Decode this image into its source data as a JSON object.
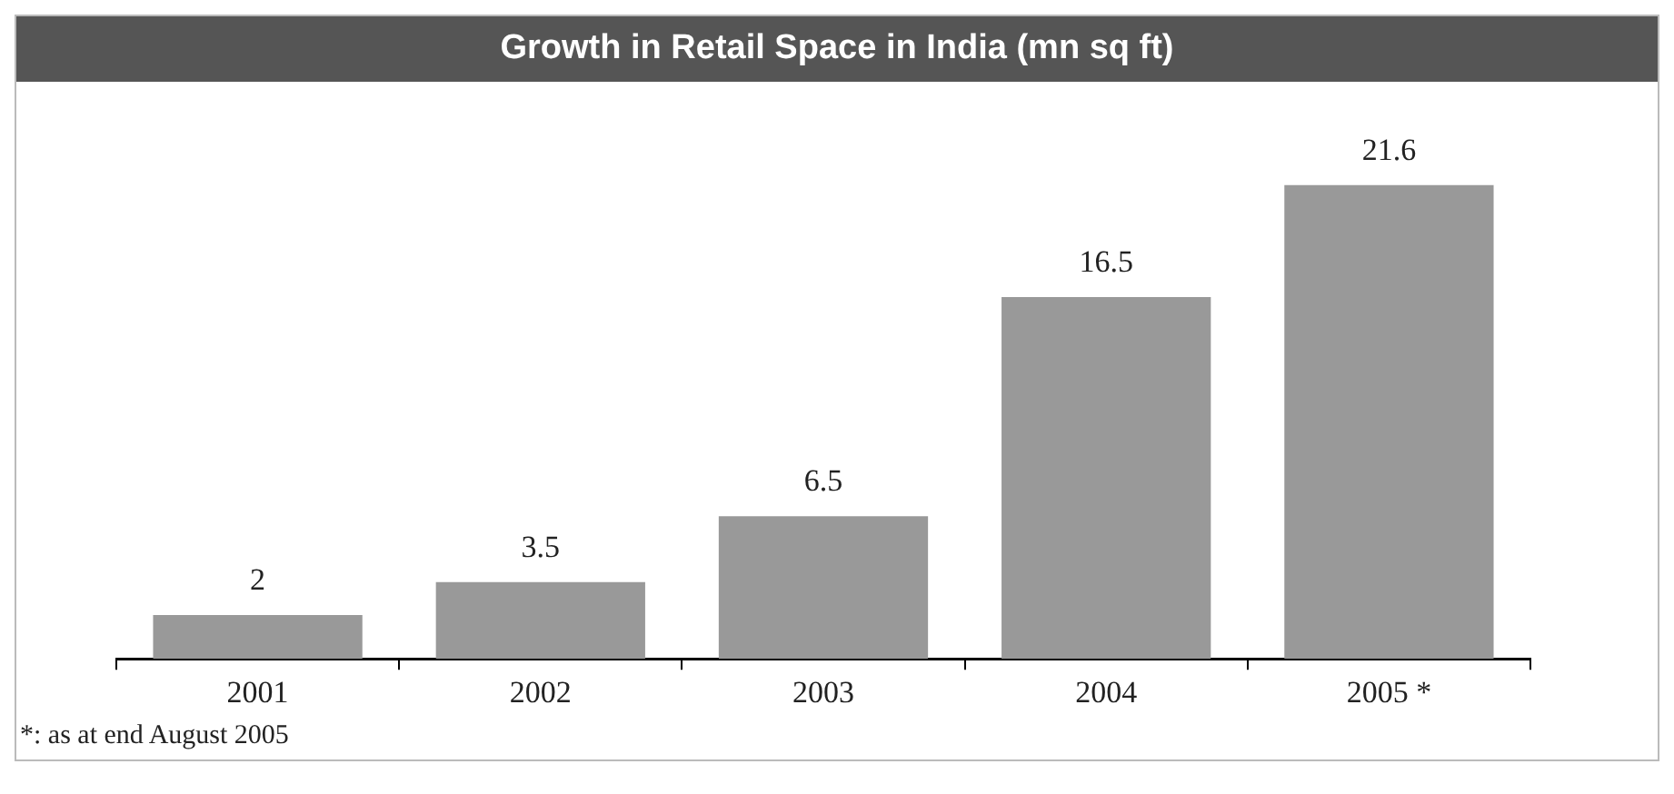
{
  "chart_data": {
    "type": "bar",
    "title": "Growth in Retail Space in India (mn sq ft)",
    "categories": [
      "2001",
      "2002",
      "2003",
      "2004",
      "2005 *"
    ],
    "values": [
      2,
      3.5,
      6.5,
      16.5,
      21.6
    ],
    "color": "#999999",
    "data_labels": true,
    "grid": false,
    "legend": false,
    "annotations": [
      "*: as at end August 2005"
    ]
  }
}
